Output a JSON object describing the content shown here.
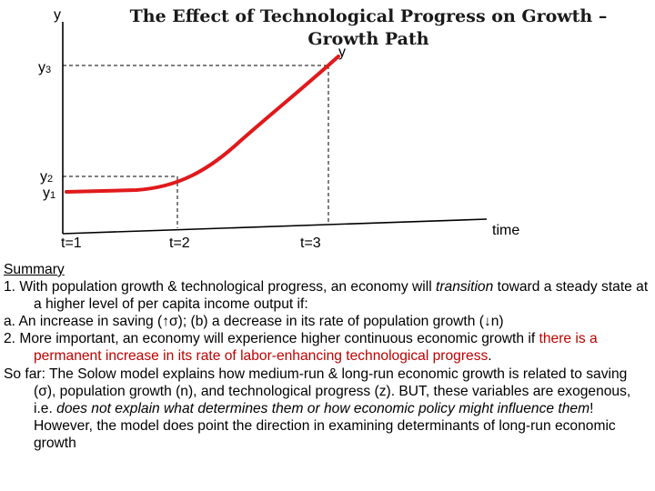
{
  "slide": {
    "title": "The Effect of Technological Progress on Growth –Growth Path"
  },
  "diagram": {
    "y_axis_label": "y",
    "curve_label": "y",
    "x_axis_label": "time",
    "y_levels": [
      {
        "name": "y",
        "sub": "3"
      },
      {
        "name": "y",
        "sub": "2"
      },
      {
        "name": "y",
        "sub": "1"
      }
    ],
    "time_ticks": [
      "t=1",
      "t=2",
      "t=3"
    ],
    "curve_color": "#e0191b"
  },
  "summary": {
    "heading": "Summary",
    "point1": {
      "prefix": "1.  With population growth & technological progress, an economy will ",
      "emphasis": "transition",
      "suffix": " toward a steady state at a higher level of per capita income output if:"
    },
    "point_a": "a.  An increase in saving (↑σ); (b) a decrease in its rate of population growth (↓n)",
    "point2": {
      "plain": "2. More important, an economy will experience higher continuous economic growth if ",
      "red": "there is a permanent increase in its rate of labor-enhancing technological progress",
      "end": "."
    },
    "sofar": {
      "plain": "So far: The Solow model explains how medium-run & long-run economic growth is related to saving (σ), population growth (n), and technological progress (z). BUT, these variables are exogenous, i.e. ",
      "italic": "does not explain what determines them or how economic policy might influence them",
      "end": "! However, the model does point the direction in examining determinants of long-run economic growth"
    }
  }
}
